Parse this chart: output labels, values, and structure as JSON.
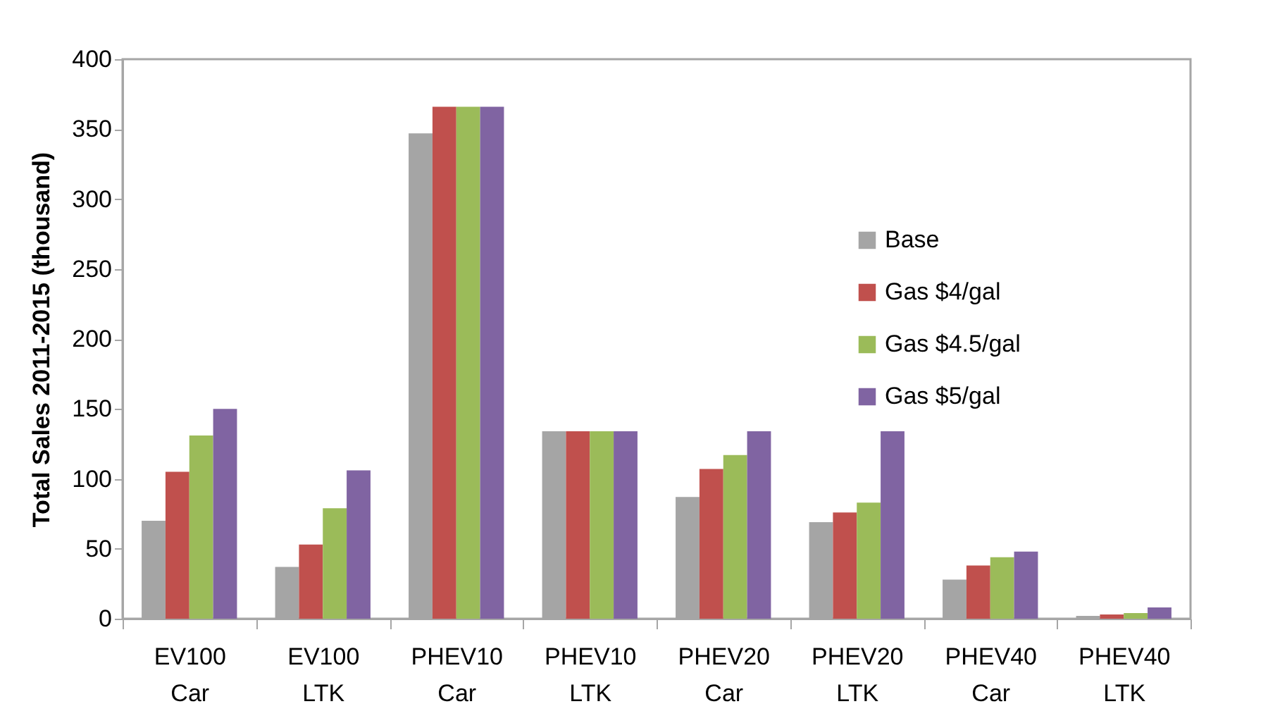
{
  "chart_data": {
    "type": "bar",
    "ylabel": "Total Sales 2011-2015 (thousand)",
    "categories": [
      "EV100 Car",
      "EV100 LTK",
      "PHEV10 Car",
      "PHEV10 LTK",
      "PHEV20 Car",
      "PHEV20 LTK",
      "PHEV40 Car",
      "PHEV40 LTK"
    ],
    "series": [
      {
        "name": "Base",
        "color": "#a5a5a5",
        "values": [
          70,
          37,
          347,
          134,
          87,
          69,
          28,
          2
        ]
      },
      {
        "name": "Gas $4/gal",
        "color": "#c0504d",
        "values": [
          105,
          53,
          366,
          134,
          107,
          76,
          38,
          3
        ]
      },
      {
        "name": "Gas $4.5/gal",
        "color": "#9bbb59",
        "values": [
          131,
          79,
          366,
          134,
          117,
          83,
          44,
          4
        ]
      },
      {
        "name": "Gas $5/gal",
        "color": "#8064a2",
        "values": [
          150,
          106,
          366,
          134,
          134,
          134,
          48,
          8
        ]
      }
    ],
    "ylim": [
      0,
      400
    ],
    "yticks": [
      0,
      50,
      100,
      150,
      200,
      250,
      300,
      350,
      400
    ],
    "grid": false,
    "legend": "top right"
  }
}
